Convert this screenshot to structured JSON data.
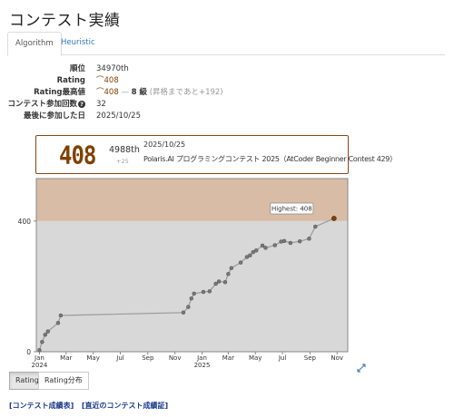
{
  "page": {
    "title": "コンテスト実績"
  },
  "tabs": [
    {
      "label": "Algorithm",
      "active": true
    },
    {
      "label": "Heuristic",
      "active": false
    }
  ],
  "info": {
    "rank_label": "順位",
    "rank_value": "34970th",
    "rating_label": "Rating",
    "rating_value": "408",
    "highest_label": "Rating最高値",
    "highest_value": "408",
    "highest_dash": "—",
    "highest_kyu": "8 級",
    "highest_note": "(昇格まであと+192)",
    "count_label": "コンテスト参加回数",
    "count_value": "32",
    "last_label": "最後に参加した日",
    "last_value": "2025/10/25"
  },
  "status": {
    "rating": "408",
    "rank": "4988th",
    "diff": "+25",
    "date": "2025/10/25",
    "contest": "Polaris.AI プログラミングコンテスト 2025（AtCoder Beginner Contest 429）"
  },
  "chart_data": {
    "type": "line",
    "x_ticks": [
      "Jan",
      "Mar",
      "May",
      "Jul",
      "Sep",
      "Nov",
      "Jan",
      "Mar",
      "May",
      "Jul",
      "Sep",
      "Nov"
    ],
    "x_year_labels": [
      "2024",
      "2025"
    ],
    "y_ticks": [
      0,
      400
    ],
    "ylim": [
      0,
      530
    ],
    "bands": [
      {
        "from": 0,
        "to": 400,
        "color": "#d8d8d8"
      },
      {
        "from": 400,
        "to": 530,
        "color": "#d9bca6"
      }
    ],
    "tooltip": "Highest: 408",
    "points": [
      [
        "2024-01-01",
        5
      ],
      [
        "2024-01-07",
        30
      ],
      [
        "2024-01-14",
        52
      ],
      [
        "2024-01-20",
        62
      ],
      [
        "2024-02-12",
        88
      ],
      [
        "2024-02-18",
        111
      ],
      [
        "2024-11-20",
        120
      ],
      [
        "2024-12-01",
        137
      ],
      [
        "2024-12-08",
        163
      ],
      [
        "2024-12-14",
        178
      ],
      [
        "2025-01-04",
        183
      ],
      [
        "2025-01-18",
        185
      ],
      [
        "2025-02-01",
        208
      ],
      [
        "2025-02-08",
        215
      ],
      [
        "2025-02-22",
        213
      ],
      [
        "2025-03-01",
        238
      ],
      [
        "2025-03-08",
        256
      ],
      [
        "2025-03-29",
        273
      ],
      [
        "2025-04-12",
        290
      ],
      [
        "2025-04-19",
        295
      ],
      [
        "2025-04-26",
        305
      ],
      [
        "2025-05-03",
        310
      ],
      [
        "2025-05-17",
        325
      ],
      [
        "2025-05-24",
        318
      ],
      [
        "2025-06-14",
        326
      ],
      [
        "2025-06-28",
        337
      ],
      [
        "2025-07-05",
        339
      ],
      [
        "2025-07-19",
        333
      ],
      [
        "2025-08-09",
        338
      ],
      [
        "2025-08-30",
        346
      ],
      [
        "2025-09-13",
        383
      ],
      [
        "2025-10-25",
        408
      ]
    ]
  },
  "buttons": {
    "rating": "Rating",
    "distribution": "Rating分布"
  },
  "links": {
    "history": "[コンテスト成績表]",
    "recent": "[直近のコンテスト成績証]"
  }
}
